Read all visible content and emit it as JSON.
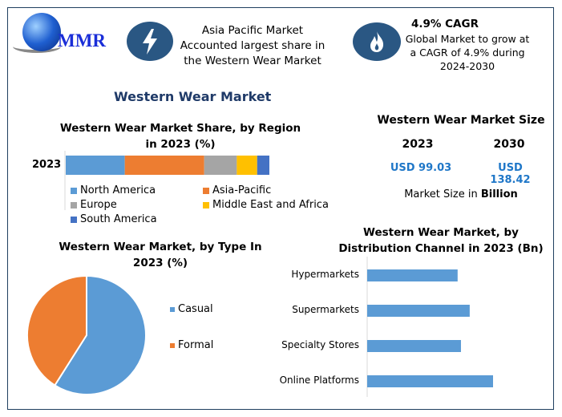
{
  "logo": {
    "text": "MMR"
  },
  "highlights": [
    {
      "icon": "lightning-icon",
      "text": "Asia Pacific Market Accounted largest share in the Western Wear Market"
    },
    {
      "icon": "flame-icon",
      "title": "4.9% CAGR",
      "text": "Global Market to grow at a CAGR of 4.9% during 2024-2030"
    }
  ],
  "main_title": "Western Wear Market",
  "market_size": {
    "title": "Western Wear Market Size",
    "years": [
      "2023",
      "2030"
    ],
    "values": [
      "USD 99.03",
      "USD 138.42"
    ],
    "value_color": "#1f77c8",
    "note_prefix": "Market Size in ",
    "note_bold": "Billion"
  },
  "chart_data": [
    {
      "type": "bar",
      "orientation": "horizontal-stacked",
      "title": "Western Wear Market Share, by Region in 2023 (%)",
      "categories": [
        "2023"
      ],
      "series": [
        {
          "name": "North America",
          "values": [
            29
          ],
          "color": "#5b9bd5"
        },
        {
          "name": "Asia-Pacific",
          "values": [
            39
          ],
          "color": "#ed7d31"
        },
        {
          "name": "Europe",
          "values": [
            16
          ],
          "color": "#a5a5a5"
        },
        {
          "name": "Middle East and Africa",
          "values": [
            10
          ],
          "color": "#ffc000"
        },
        {
          "name": "South America",
          "values": [
            6
          ],
          "color": "#4472c4"
        }
      ],
      "legend": "bottom"
    },
    {
      "type": "pie",
      "title": "Western Wear Market, by Type In 2023 (%)",
      "labels": [
        "Casual",
        "Formal"
      ],
      "values": [
        59,
        41
      ],
      "colors": [
        "#5b9bd5",
        "#ed7d31"
      ],
      "legend": "right"
    },
    {
      "type": "bar",
      "orientation": "horizontal",
      "title": "Western Wear Market, by Distribution Channel in 2023 (Bn)",
      "categories": [
        "Hypermarkets",
        "Supermarkets",
        "Specialty Stores",
        "Online Platforms"
      ],
      "values": [
        21.7,
        24.6,
        22.5,
        30.2
      ],
      "color": "#5b9bd5"
    }
  ]
}
